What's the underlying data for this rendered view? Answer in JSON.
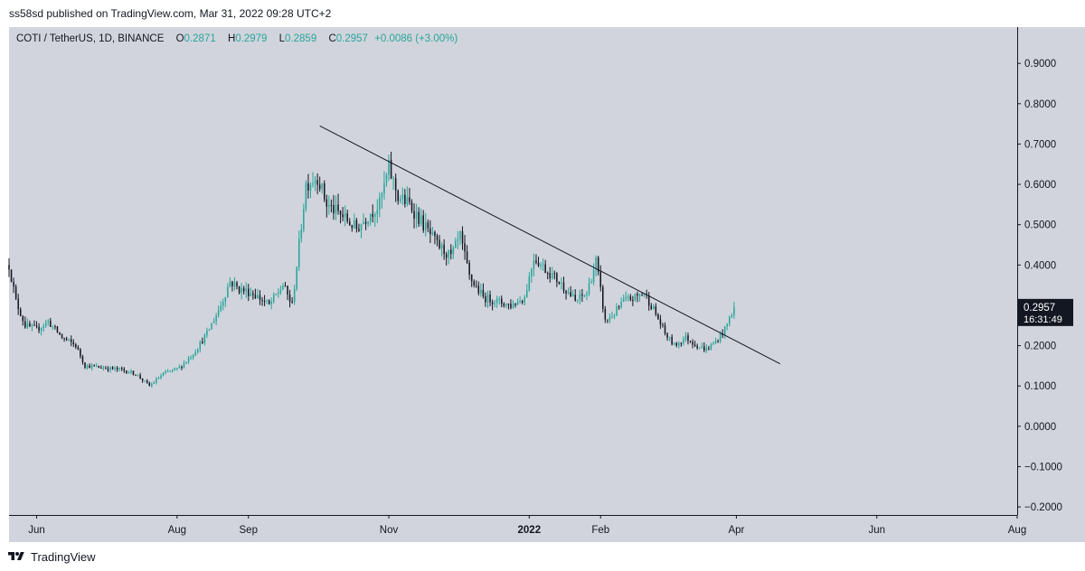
{
  "header": {
    "published_line": "ss58sd published on TradingView.com, Mar 31, 2022 09:28 UTC+2"
  },
  "legend": {
    "symbol": "COTI / TetherUS, 1D, BINANCE",
    "open_label": "O",
    "open": "0.2871",
    "high_label": "H",
    "high": "0.2979",
    "low_label": "L",
    "low": "0.2859",
    "close_label": "C",
    "close": "0.2957",
    "change": "+0.0086 (+3.00%)"
  },
  "price_tag": {
    "price": "0.2957",
    "countdown": "16:31:49"
  },
  "footer": {
    "brand": "TradingView"
  },
  "colors": {
    "background": "#d1d4dc",
    "up_candle": "#26a69a",
    "down_candle": "#131722",
    "trendline": "#131722",
    "axis_text": "#131722"
  },
  "chart_data": {
    "type": "candlestick",
    "title": "COTI / TetherUS, 1D, BINANCE",
    "x_axis": {
      "type": "date",
      "range": [
        "2021-05-20",
        "2022-08-01"
      ],
      "tick_labels": [
        {
          "label": "Jun",
          "date": "2021-06-01",
          "bold": false
        },
        {
          "label": "Aug",
          "date": "2021-08-01",
          "bold": false
        },
        {
          "label": "Sep",
          "date": "2021-09-01",
          "bold": false
        },
        {
          "label": "Nov",
          "date": "2021-11-01",
          "bold": false
        },
        {
          "label": "2022",
          "date": "2022-01-01",
          "bold": true
        },
        {
          "label": "Feb",
          "date": "2022-02-01",
          "bold": false
        },
        {
          "label": "Apr",
          "date": "2022-04-01",
          "bold": false
        },
        {
          "label": "Jun",
          "date": "2022-06-01",
          "bold": false
        },
        {
          "label": "Aug",
          "date": "2022-08-01",
          "bold": false
        }
      ]
    },
    "y_axis": {
      "position": "right",
      "range": [
        -0.22,
        0.99
      ],
      "tick_labels": [
        "0.9000",
        "0.8000",
        "0.7000",
        "0.6000",
        "0.5000",
        "0.4000",
        "0.2000",
        "0.1000",
        "0.0000",
        "−0.1000",
        "−0.2000"
      ],
      "tick_values": [
        0.9,
        0.8,
        0.7,
        0.6,
        0.5,
        0.4,
        0.2,
        0.1,
        0.0,
        -0.1,
        -0.2
      ]
    },
    "grid": false,
    "price_path": [
      [
        "2021-05-20",
        0.4
      ],
      [
        "2021-05-23",
        0.31
      ],
      [
        "2021-05-27",
        0.25
      ],
      [
        "2021-06-01",
        0.24
      ],
      [
        "2021-06-06",
        0.26
      ],
      [
        "2021-06-12",
        0.22
      ],
      [
        "2021-06-18",
        0.2
      ],
      [
        "2021-06-22",
        0.15
      ],
      [
        "2021-06-30",
        0.145
      ],
      [
        "2021-07-08",
        0.14
      ],
      [
        "2021-07-14",
        0.13
      ],
      [
        "2021-07-20",
        0.1
      ],
      [
        "2021-07-26",
        0.13
      ],
      [
        "2021-08-02",
        0.145
      ],
      [
        "2021-08-08",
        0.18
      ],
      [
        "2021-08-14",
        0.23
      ],
      [
        "2021-08-20",
        0.3
      ],
      [
        "2021-08-24",
        0.36
      ],
      [
        "2021-08-28",
        0.34
      ],
      [
        "2021-09-03",
        0.33
      ],
      [
        "2021-09-10",
        0.3
      ],
      [
        "2021-09-16",
        0.35
      ],
      [
        "2021-09-20",
        0.3
      ],
      [
        "2021-09-26",
        0.6
      ],
      [
        "2021-10-01",
        0.62
      ],
      [
        "2021-10-05",
        0.55
      ],
      [
        "2021-10-12",
        0.52
      ],
      [
        "2021-10-18",
        0.49
      ],
      [
        "2021-10-24",
        0.53
      ],
      [
        "2021-10-28",
        0.55
      ],
      [
        "2021-11-01",
        0.64
      ],
      [
        "2021-11-05",
        0.57
      ],
      [
        "2021-11-10",
        0.55
      ],
      [
        "2021-11-16",
        0.5
      ],
      [
        "2021-11-22",
        0.45
      ],
      [
        "2021-11-28",
        0.42
      ],
      [
        "2021-12-02",
        0.47
      ],
      [
        "2021-12-06",
        0.37
      ],
      [
        "2021-12-12",
        0.32
      ],
      [
        "2021-12-18",
        0.31
      ],
      [
        "2021-12-24",
        0.3
      ],
      [
        "2021-12-30",
        0.32
      ],
      [
        "2022-01-03",
        0.42
      ],
      [
        "2022-01-08",
        0.39
      ],
      [
        "2022-01-12",
        0.37
      ],
      [
        "2022-01-17",
        0.34
      ],
      [
        "2022-01-21",
        0.31
      ],
      [
        "2022-01-26",
        0.33
      ],
      [
        "2022-01-30",
        0.41
      ],
      [
        "2022-02-03",
        0.26
      ],
      [
        "2022-02-07",
        0.28
      ],
      [
        "2022-02-11",
        0.31
      ],
      [
        "2022-02-16",
        0.32
      ],
      [
        "2022-02-20",
        0.33
      ],
      [
        "2022-02-24",
        0.29
      ],
      [
        "2022-03-01",
        0.23
      ],
      [
        "2022-03-05",
        0.2
      ],
      [
        "2022-03-10",
        0.22
      ],
      [
        "2022-03-15",
        0.2
      ],
      [
        "2022-03-19",
        0.19
      ],
      [
        "2022-03-23",
        0.21
      ],
      [
        "2022-03-27",
        0.24
      ],
      [
        "2022-03-31",
        0.2957
      ]
    ],
    "trendline": {
      "start": {
        "date": "2021-10-02",
        "price": 0.745
      },
      "end": {
        "date": "2022-04-20",
        "price": 0.155
      }
    },
    "last_price": 0.2957
  }
}
